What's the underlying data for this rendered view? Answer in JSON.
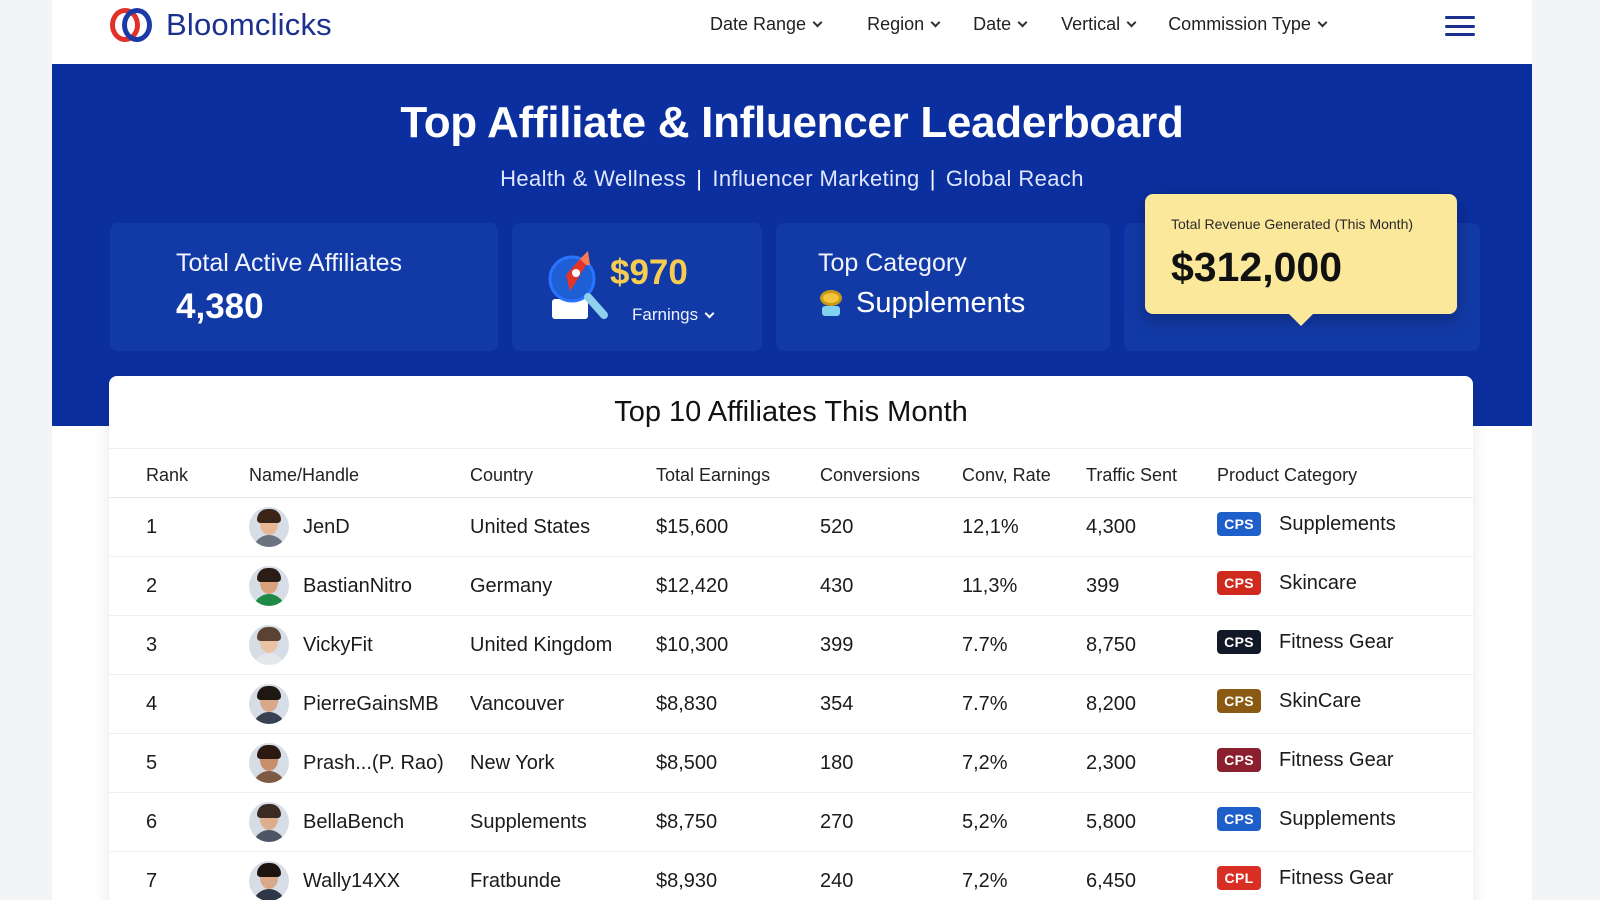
{
  "brand": {
    "name": "Bloomclicks"
  },
  "nav": {
    "items": [
      {
        "label": "Date Range"
      },
      {
        "label": "Region"
      },
      {
        "label": "Date"
      },
      {
        "label": "Vertical"
      },
      {
        "label": "Commission Type"
      }
    ],
    "menu_icon": "hamburger-menu-icon"
  },
  "hero": {
    "title": "Top Affiliate & Influencer Leaderboard",
    "tags": [
      "Health & Wellness",
      "Influencer Marketing",
      "Global Reach"
    ],
    "separator": "|"
  },
  "stats": {
    "active_affiliates": {
      "label": "Total Active Affiliates",
      "value": "4,380"
    },
    "earnings": {
      "value": "$970",
      "label": "Farnings",
      "icon": "rocket-magnifier-icon"
    },
    "top_category": {
      "label": "Top Category",
      "value": "Supplements",
      "icon": "medal-icon"
    },
    "revenue": {
      "label": "Total Revenue Generated (This Month)",
      "value": "$312,000"
    }
  },
  "table": {
    "title": "Top 10 Affiliates This Month",
    "columns": [
      "Rank",
      "Name/Handle",
      "Country",
      "Total Earnings",
      "Conversions",
      "Conv, Rate",
      "Traffic Sent",
      "Product Category"
    ],
    "rows": [
      {
        "rank": "1",
        "name": "JenD",
        "country": "United States",
        "earnings": "$15,600",
        "conversions": "520",
        "rate": "12,1%",
        "traffic": "4,300",
        "badge": "CPS",
        "badge_color": "#1f5fc9",
        "category": "Supplements",
        "skin": "#e8b896",
        "hair": "#3b2418",
        "shirt": "#6b7280"
      },
      {
        "rank": "2",
        "name": "BastianNitro",
        "country": "Germany",
        "earnings": "$12,420",
        "conversions": "430",
        "rate": "11,3%",
        "traffic": "399",
        "badge": "CPS",
        "badge_color": "#d02a1e",
        "category": "Skincare",
        "skin": "#d9a27c",
        "hair": "#2a1d16",
        "shirt": "#1f8a45"
      },
      {
        "rank": "3",
        "name": "VickyFit",
        "country": "United Kingdom",
        "earnings": "$10,300",
        "conversions": "399",
        "rate": "7.7%",
        "traffic": "8,750",
        "badge": "CPS",
        "badge_color": "#111827",
        "category": "Fitness Gear",
        "skin": "#eac3a4",
        "hair": "#5b4334",
        "shirt": "#e5e7eb"
      },
      {
        "rank": "4",
        "name": "PierreGainsMB",
        "country": "Vancouver",
        "earnings": "$8,830",
        "conversions": "354",
        "rate": "7.7%",
        "traffic": "8,200",
        "badge": "CPS",
        "badge_color": "#8a5a12",
        "category": "SkinCare",
        "skin": "#d8a888",
        "hair": "#1f1712",
        "shirt": "#374151"
      },
      {
        "rank": "5",
        "name": "Prash...(P. Rao)",
        "country": "New York",
        "earnings": "$8,500",
        "conversions": "180",
        "rate": "7,2%",
        "traffic": "2,300",
        "badge": "CPS",
        "badge_color": "#8b1f2e",
        "category": "Fitness Gear",
        "skin": "#c98e6a",
        "hair": "#2b1a12",
        "shirt": "#7c5a44"
      },
      {
        "rank": "6",
        "name": "BellaBench",
        "country": "Supplements",
        "earnings": "$8,750",
        "conversions": "270",
        "rate": "5,2%",
        "traffic": "5,800",
        "badge": "CPS",
        "badge_color": "#1f5fc9",
        "category": "Supplements",
        "skin": "#dcae8e",
        "hair": "#3a2a22",
        "shirt": "#4b5563"
      },
      {
        "rank": "7",
        "name": "Wally14XX",
        "country": "Fratbunde",
        "earnings": "$8,930",
        "conversions": "240",
        "rate": "7,2%",
        "traffic": "6,450",
        "badge": "CPL",
        "badge_color": "#d92e24",
        "category": "Fitness Gear",
        "skin": "#d9a888",
        "hair": "#1d1410",
        "shirt": "#2d3748"
      }
    ]
  }
}
